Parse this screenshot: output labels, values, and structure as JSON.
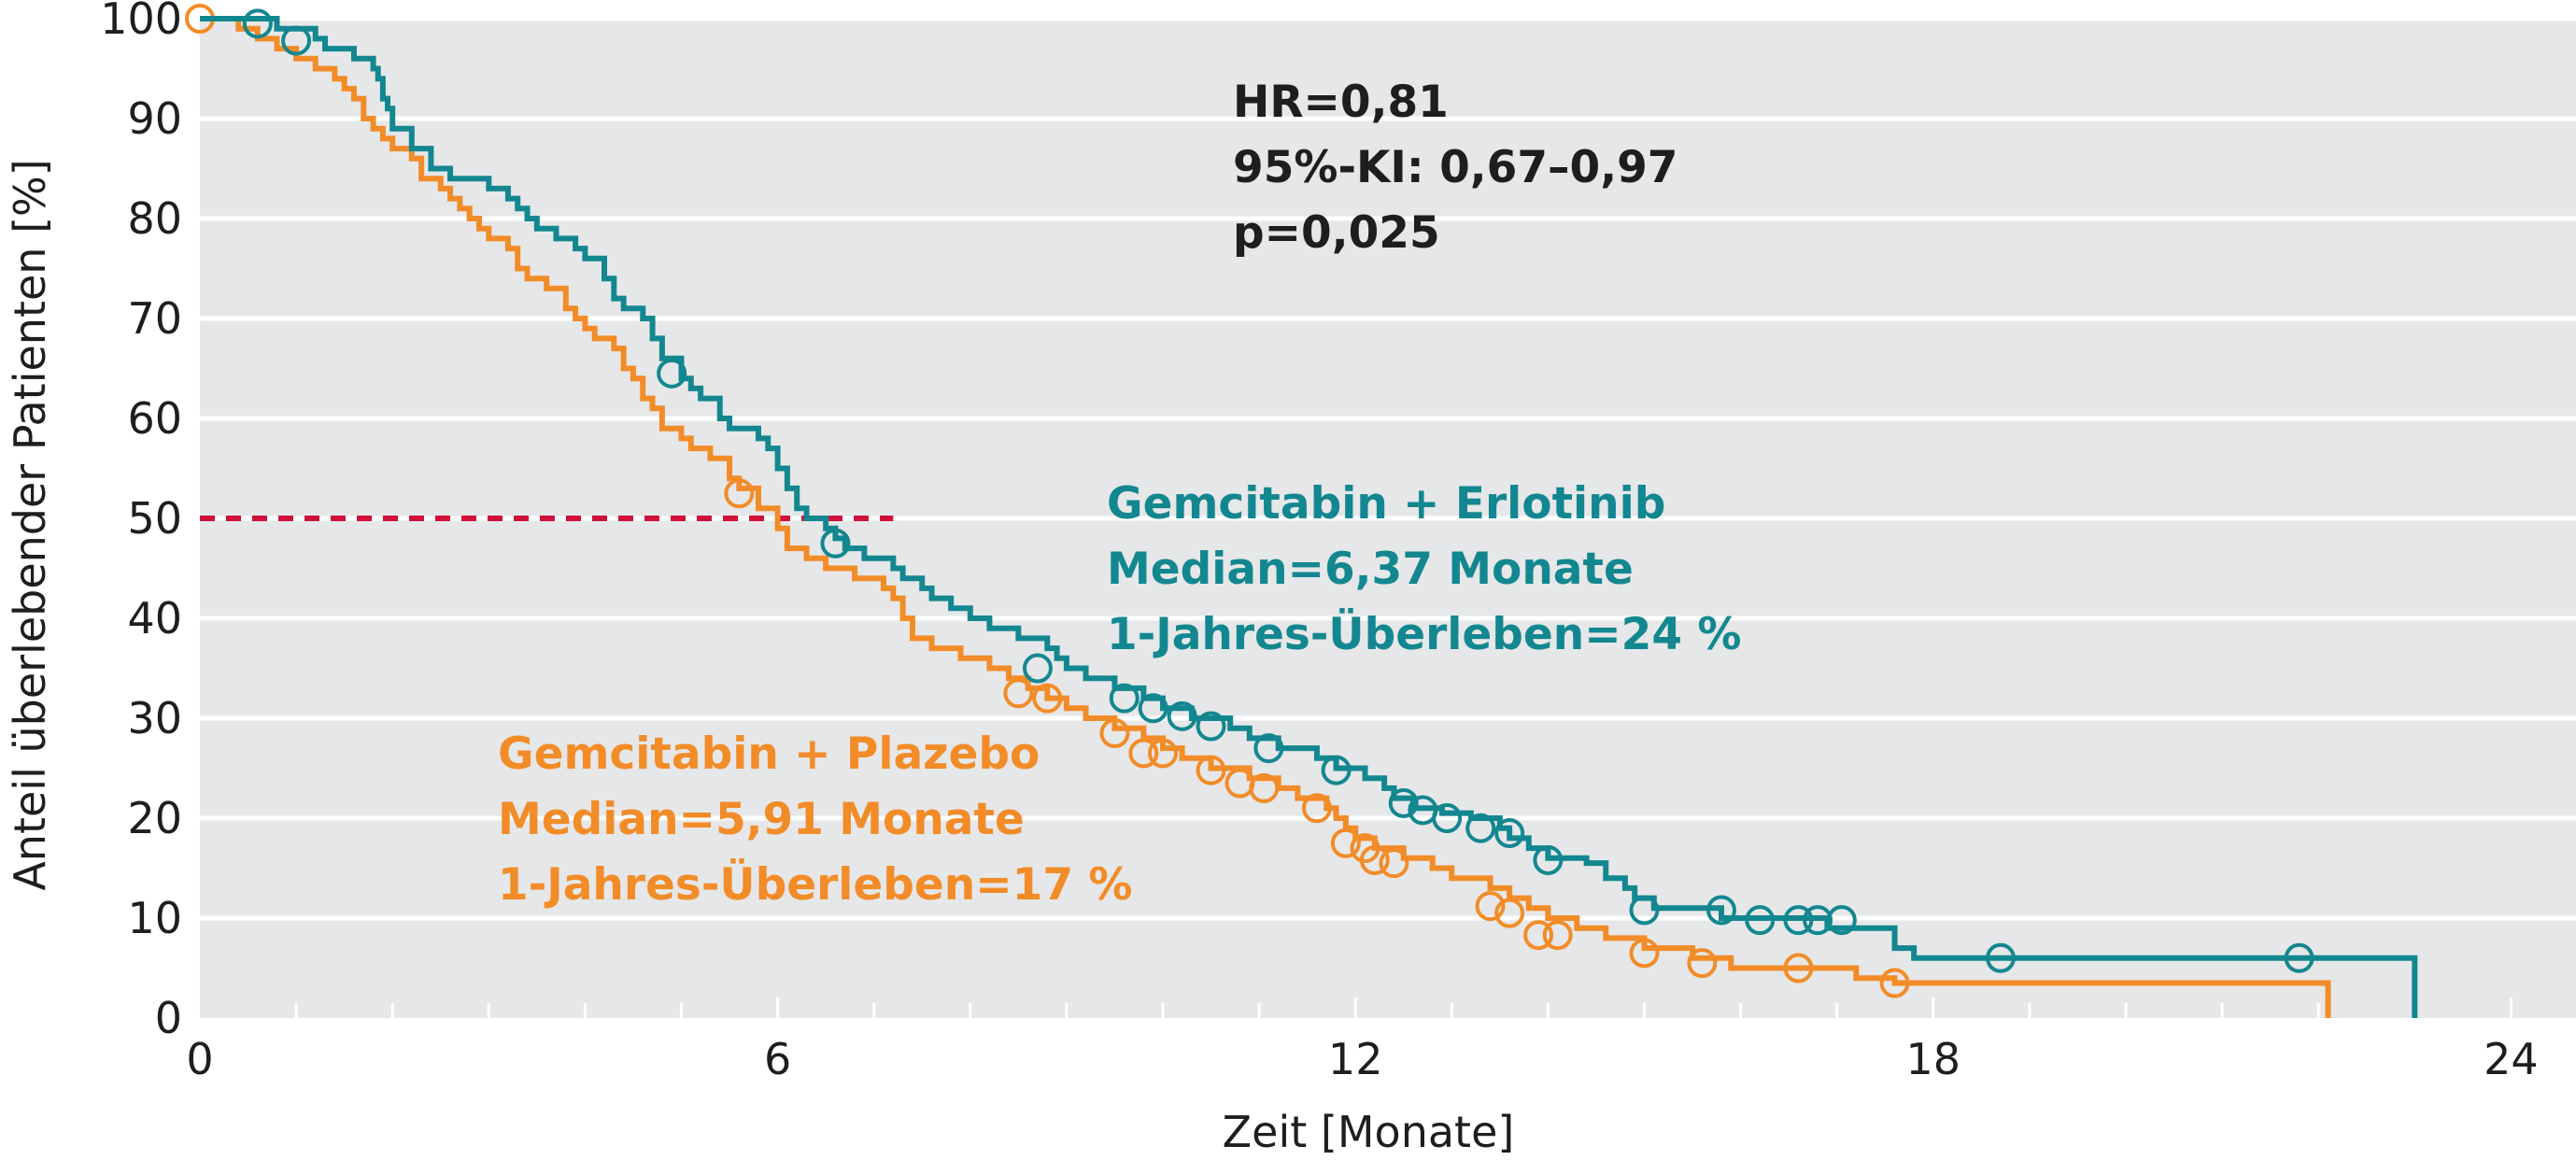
{
  "chart_data": {
    "type": "line",
    "xlabel": "Zeit [Monate]",
    "ylabel": "Anteil überlebender Patienten [%]",
    "xlim": [
      0,
      24.3
    ],
    "ylim": [
      0,
      100
    ],
    "x_ticks": [
      0,
      6,
      12,
      18,
      24
    ],
    "y_ticks": [
      0,
      10,
      20,
      30,
      40,
      50,
      60,
      70,
      80,
      90,
      100
    ],
    "grid": true,
    "background": "#e6e7e8",
    "stats": [
      "HR=0,81",
      "95%-KI: 0,67–0,97",
      "p=0,025"
    ],
    "median_reference": {
      "y": 50,
      "x_start": 0,
      "x_end": 7.2,
      "color": "#d0103a"
    },
    "series": [
      {
        "name": "Gemcitabin + Erlotinib",
        "color": "#138790",
        "label_lines": [
          "Gemcitabin + Erlotinib",
          "Median=6,37 Monate",
          "1-Jahres-Überleben=24 %"
        ],
        "step_points": [
          [
            0,
            100
          ],
          [
            0.5,
            100
          ],
          [
            0.8,
            99
          ],
          [
            1.2,
            98
          ],
          [
            1.3,
            97
          ],
          [
            1.6,
            96
          ],
          [
            1.8,
            95
          ],
          [
            1.85,
            94
          ],
          [
            1.9,
            92
          ],
          [
            1.95,
            91
          ],
          [
            2.0,
            89
          ],
          [
            2.2,
            87
          ],
          [
            2.4,
            85
          ],
          [
            2.6,
            84
          ],
          [
            2.8,
            84
          ],
          [
            3.0,
            83
          ],
          [
            3.2,
            82
          ],
          [
            3.3,
            81
          ],
          [
            3.4,
            80
          ],
          [
            3.5,
            79
          ],
          [
            3.7,
            78
          ],
          [
            3.9,
            77
          ],
          [
            4.0,
            76
          ],
          [
            4.2,
            74
          ],
          [
            4.3,
            72
          ],
          [
            4.4,
            71
          ],
          [
            4.6,
            70
          ],
          [
            4.7,
            68
          ],
          [
            4.8,
            66
          ],
          [
            5.0,
            64
          ],
          [
            5.1,
            63
          ],
          [
            5.2,
            62
          ],
          [
            5.4,
            60
          ],
          [
            5.5,
            59
          ],
          [
            5.8,
            58
          ],
          [
            5.9,
            57
          ],
          [
            6.0,
            55
          ],
          [
            6.1,
            53
          ],
          [
            6.2,
            51
          ],
          [
            6.3,
            50
          ],
          [
            6.5,
            49
          ],
          [
            6.6,
            48
          ],
          [
            6.7,
            47
          ],
          [
            6.9,
            46
          ],
          [
            7.2,
            45
          ],
          [
            7.3,
            44
          ],
          [
            7.5,
            43
          ],
          [
            7.6,
            42
          ],
          [
            7.8,
            41
          ],
          [
            8.0,
            40
          ],
          [
            8.2,
            39
          ],
          [
            8.5,
            38
          ],
          [
            8.8,
            37
          ],
          [
            8.9,
            36
          ],
          [
            9.0,
            35
          ],
          [
            9.2,
            34
          ],
          [
            9.5,
            33
          ],
          [
            9.8,
            32
          ],
          [
            10.0,
            31
          ],
          [
            10.3,
            30
          ],
          [
            10.7,
            29
          ],
          [
            10.9,
            28
          ],
          [
            11.2,
            27
          ],
          [
            11.6,
            26
          ],
          [
            11.8,
            25
          ],
          [
            12.1,
            24
          ],
          [
            12.3,
            23
          ],
          [
            12.4,
            22
          ],
          [
            12.6,
            21
          ],
          [
            12.9,
            20.5
          ],
          [
            13.2,
            20
          ],
          [
            13.5,
            19
          ],
          [
            13.6,
            18
          ],
          [
            13.8,
            17
          ],
          [
            14.0,
            16
          ],
          [
            14.4,
            15.5
          ],
          [
            14.6,
            14
          ],
          [
            14.8,
            13
          ],
          [
            14.9,
            12
          ],
          [
            15.1,
            11
          ],
          [
            15.6,
            11
          ],
          [
            15.8,
            10
          ],
          [
            16.5,
            10
          ],
          [
            16.9,
            9
          ],
          [
            17.6,
            7
          ],
          [
            17.8,
            6
          ],
          [
            19.0,
            6
          ],
          [
            21.0,
            6
          ],
          [
            22.6,
            6
          ],
          [
            23.0,
            0
          ]
        ],
        "censor_marks": [
          [
            0.6,
            99.5
          ],
          [
            1.0,
            97.8
          ],
          [
            4.9,
            64.5
          ],
          [
            6.6,
            47.5
          ],
          [
            8.7,
            35
          ],
          [
            9.6,
            32
          ],
          [
            9.9,
            31
          ],
          [
            10.2,
            30.2
          ],
          [
            10.5,
            29.2
          ],
          [
            11.1,
            27
          ],
          [
            11.8,
            24.8
          ],
          [
            12.5,
            21.5
          ],
          [
            12.7,
            20.8
          ],
          [
            12.95,
            20
          ],
          [
            13.3,
            19
          ],
          [
            13.6,
            18.5
          ],
          [
            14.0,
            15.8
          ],
          [
            15.0,
            10.8
          ],
          [
            15.8,
            10.8
          ],
          [
            16.2,
            9.8
          ],
          [
            16.6,
            9.8
          ],
          [
            16.8,
            9.8
          ],
          [
            17.05,
            9.8
          ],
          [
            18.7,
            6
          ],
          [
            21.8,
            6
          ]
        ]
      },
      {
        "name": "Gemcitabin + Plazebo",
        "color": "#f28c28",
        "label_lines": [
          "Gemcitabin + Plazebo",
          "Median=5,91 Monate",
          "1-Jahres-Überleben=17 %"
        ],
        "step_points": [
          [
            0,
            100
          ],
          [
            0.4,
            99
          ],
          [
            0.6,
            98
          ],
          [
            0.8,
            97
          ],
          [
            1.0,
            96
          ],
          [
            1.2,
            95
          ],
          [
            1.4,
            94
          ],
          [
            1.5,
            93
          ],
          [
            1.6,
            92
          ],
          [
            1.7,
            90
          ],
          [
            1.8,
            89
          ],
          [
            1.9,
            88
          ],
          [
            2.0,
            87
          ],
          [
            2.2,
            86
          ],
          [
            2.3,
            84
          ],
          [
            2.5,
            83
          ],
          [
            2.6,
            82
          ],
          [
            2.7,
            81
          ],
          [
            2.8,
            80
          ],
          [
            2.9,
            79
          ],
          [
            3.0,
            78
          ],
          [
            3.2,
            77
          ],
          [
            3.3,
            75
          ],
          [
            3.4,
            74
          ],
          [
            3.6,
            73
          ],
          [
            3.8,
            71
          ],
          [
            3.9,
            70
          ],
          [
            4.0,
            69
          ],
          [
            4.1,
            68
          ],
          [
            4.3,
            67
          ],
          [
            4.4,
            65
          ],
          [
            4.5,
            64
          ],
          [
            4.6,
            62
          ],
          [
            4.7,
            61
          ],
          [
            4.8,
            59
          ],
          [
            5.0,
            58
          ],
          [
            5.1,
            57
          ],
          [
            5.3,
            56
          ],
          [
            5.5,
            54
          ],
          [
            5.6,
            53
          ],
          [
            5.8,
            51
          ],
          [
            6.0,
            49
          ],
          [
            6.1,
            47
          ],
          [
            6.3,
            46
          ],
          [
            6.5,
            45
          ],
          [
            6.8,
            44
          ],
          [
            7.1,
            43
          ],
          [
            7.2,
            42
          ],
          [
            7.3,
            40
          ],
          [
            7.4,
            38
          ],
          [
            7.6,
            37
          ],
          [
            7.9,
            36
          ],
          [
            8.2,
            35
          ],
          [
            8.4,
            34
          ],
          [
            8.6,
            33
          ],
          [
            8.8,
            32
          ],
          [
            9.0,
            31
          ],
          [
            9.2,
            30
          ],
          [
            9.5,
            29
          ],
          [
            9.8,
            28
          ],
          [
            10.0,
            27
          ],
          [
            10.2,
            26
          ],
          [
            10.5,
            25
          ],
          [
            10.9,
            24
          ],
          [
            11.2,
            23
          ],
          [
            11.4,
            22
          ],
          [
            11.7,
            21
          ],
          [
            11.8,
            20
          ],
          [
            11.9,
            19
          ],
          [
            12.0,
            18
          ],
          [
            12.2,
            17
          ],
          [
            12.5,
            16
          ],
          [
            12.8,
            15
          ],
          [
            13.0,
            14
          ],
          [
            13.4,
            13
          ],
          [
            13.6,
            12
          ],
          [
            13.8,
            11
          ],
          [
            14.0,
            10
          ],
          [
            14.3,
            9
          ],
          [
            14.6,
            8
          ],
          [
            15.0,
            7
          ],
          [
            15.5,
            6
          ],
          [
            15.9,
            5
          ],
          [
            16.9,
            5
          ],
          [
            17.2,
            4
          ],
          [
            17.6,
            3.5
          ],
          [
            19.0,
            3.5
          ],
          [
            21.0,
            3.5
          ],
          [
            22.1,
            3.5
          ],
          [
            22.1,
            0
          ]
        ],
        "censor_marks": [
          [
            0.0,
            100
          ],
          [
            5.6,
            52.5
          ],
          [
            8.5,
            32.5
          ],
          [
            8.8,
            32
          ],
          [
            9.5,
            28.5
          ],
          [
            9.8,
            26.5
          ],
          [
            10.0,
            26.5
          ],
          [
            10.5,
            24.8
          ],
          [
            10.8,
            23.5
          ],
          [
            11.05,
            23
          ],
          [
            11.6,
            21
          ],
          [
            11.9,
            17.5
          ],
          [
            12.1,
            17
          ],
          [
            12.2,
            15.8
          ],
          [
            12.4,
            15.5
          ],
          [
            13.4,
            11.2
          ],
          [
            13.6,
            10.5
          ],
          [
            13.9,
            8.3
          ],
          [
            14.1,
            8.3
          ],
          [
            15.0,
            6.5
          ],
          [
            15.6,
            5.5
          ],
          [
            16.6,
            5
          ],
          [
            17.6,
            3.5
          ]
        ]
      }
    ]
  }
}
